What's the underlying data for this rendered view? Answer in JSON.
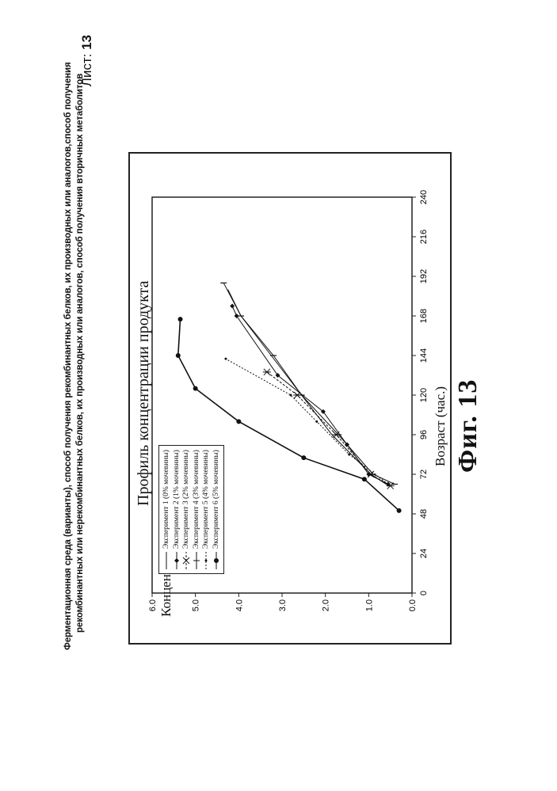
{
  "header": {
    "line1": "Ферментационная среда (варианты), способ получения рекомбинантных белков, их производных или аналогов,способ получения",
    "line2": "рекомбинантных или нерекомбинантных белков, их производных или аналогов, способ получения вторичных метаболитов",
    "sheet_label": "Лист: ",
    "sheet_number": "13"
  },
  "figure_caption": "Фиг. 13",
  "chart_data": {
    "type": "line",
    "title": "Профиль концентрации продукта",
    "xlabel": "Возраст (час.)",
    "ylabel": "Концентрация продукта (г/л)",
    "xlim": [
      0,
      240
    ],
    "ylim": [
      0,
      6
    ],
    "xticks": [
      "0",
      "24",
      "48",
      "72",
      "96",
      "120",
      "144",
      "168",
      "192",
      "216",
      "240"
    ],
    "yticks": [
      "0.0",
      "1.0",
      "2.0",
      "3.0",
      "4.0",
      "5.0",
      "6.0"
    ],
    "legend_position": "top-left",
    "series": [
      {
        "name": "Эксперимент 1 (0% мочевины)",
        "marker": "none",
        "x": [
          66,
          72,
          96,
          120,
          144,
          168,
          184
        ],
        "y": [
          0.6,
          0.95,
          1.85,
          2.55,
          3.25,
          3.95,
          4.25
        ]
      },
      {
        "name": "Эксперимент 2 (1% мочевины)",
        "marker": "diamond",
        "x": [
          66,
          72,
          90,
          110,
          132,
          168,
          174
        ],
        "y": [
          0.55,
          1.0,
          1.5,
          2.05,
          3.1,
          4.05,
          4.15
        ]
      },
      {
        "name": "Эксперимент 3 (2% мочевины)",
        "marker": "star",
        "x": [
          65,
          72,
          96,
          120,
          134
        ],
        "y": [
          0.5,
          0.95,
          1.75,
          2.65,
          3.35
        ]
      },
      {
        "name": "Эксперимент 4 (3% мочевины)",
        "marker": "tick",
        "x": [
          66,
          72,
          96,
          120,
          144,
          168,
          188
        ],
        "y": [
          0.4,
          0.9,
          1.7,
          2.55,
          3.2,
          3.95,
          4.35
        ]
      },
      {
        "name": "Эксперимент 5 (4% мочевины)",
        "marker": "dot",
        "x": [
          66,
          84,
          104,
          120,
          142
        ],
        "y": [
          0.55,
          1.45,
          2.2,
          2.8,
          4.3
        ]
      },
      {
        "name": "Эксперимент 6 (5% мочевины)",
        "marker": "circle",
        "x": [
          50,
          69,
          82,
          104,
          124,
          144,
          166
        ],
        "y": [
          0.3,
          1.1,
          2.5,
          4.0,
          5.0,
          5.4,
          5.35
        ]
      }
    ]
  }
}
